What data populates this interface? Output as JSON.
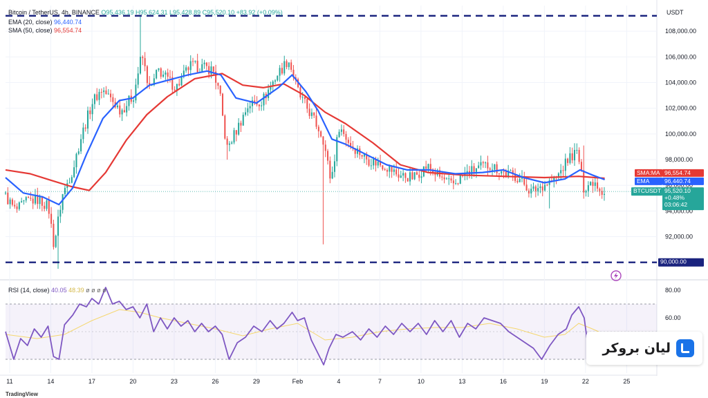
{
  "header": {
    "symbol": "Bitcoin / TetherUS, 4h, BINANCE",
    "o": "O95,436.19",
    "h": "H95,624.31",
    "l": "L95,428.89",
    "c": "C95,520.10",
    "change": "+83.92 (+0.09%)",
    "ema_label": "EMA (20, close)",
    "ema_value": "96,440.74",
    "sma_label": "SMA (50, close)",
    "sma_value": "96,554.74",
    "rsi_label": "RSI (14, close)",
    "rsi_value": "40.05",
    "rsi_ma_value": "48.39",
    "rsi_extra": "ø ø ø ø"
  },
  "price_axis": {
    "currency": "USDT",
    "sma_tag": "SMA:MA",
    "sma_tag_value": "96,554.74",
    "ema_tag": "EMA",
    "ema_tag_value": "96,440.74",
    "symbol_tag": "BTCUSDT",
    "last_price": "95,520.10",
    "last_change": "+0.48%",
    "countdown": "03:06:42",
    "level_tag": "90,000.00"
  },
  "branding": {
    "name": "لیان بروکر",
    "footer": "TradingView"
  },
  "colors": {
    "bull": "#26a69a",
    "bear": "#ef5350",
    "ema": "#2962ff",
    "sma": "#e53935",
    "rsi": "#7e57c2",
    "rsi_ma": "#f5d76e",
    "level": "#1a237e"
  },
  "chart_data": {
    "type": "candlestick",
    "title": "Bitcoin / TetherUS, 4h, BINANCE",
    "y_axis": {
      "unit": "USDT",
      "range": [
        88800,
        110000
      ],
      "tick_values": [
        92000,
        94000,
        96000,
        98000,
        100000,
        102000,
        104000,
        106000,
        108000
      ],
      "tick_labels": [
        "92,000.00",
        "94,000.00",
        "96,000.00",
        "98,000.00",
        "100,000.00",
        "102,000.00",
        "104,000.00",
        "106,000.00",
        "108,000.00"
      ]
    },
    "x_axis": {
      "labels": [
        "11",
        "14",
        "17",
        "20",
        "23",
        "26",
        "29",
        "Feb",
        "4",
        "7",
        "10",
        "13",
        "16",
        "19",
        "22",
        "25"
      ],
      "label_day_index": [
        0,
        3,
        6,
        9,
        12,
        15,
        18,
        21,
        24,
        27,
        30,
        33,
        36,
        39,
        42,
        45
      ],
      "visible_day_range": [
        -0.3,
        47.2
      ],
      "data_day_range": [
        -0.3,
        43.4
      ]
    },
    "horizontal_levels": [
      109200,
      90000
    ],
    "price_path": [
      [
        -0.3,
        95400
      ],
      [
        0.6,
        94000
      ],
      [
        1.5,
        94800
      ],
      [
        2.3,
        94900
      ],
      [
        3.0,
        94300
      ],
      [
        3.4,
        91300
      ],
      [
        4.0,
        95200
      ],
      [
        4.8,
        97300
      ],
      [
        5.3,
        99500
      ],
      [
        6.2,
        102500
      ],
      [
        6.9,
        103500
      ],
      [
        8.3,
        101800
      ],
      [
        9.2,
        103000
      ],
      [
        9.8,
        106200
      ],
      [
        10.4,
        103300
      ],
      [
        11.0,
        105000
      ],
      [
        12.3,
        103600
      ],
      [
        13.3,
        105300
      ],
      [
        14.2,
        105200
      ],
      [
        15.0,
        105000
      ],
      [
        15.5,
        103000
      ],
      [
        16.0,
        98800
      ],
      [
        16.8,
        100500
      ],
      [
        17.6,
        102300
      ],
      [
        18.6,
        102600
      ],
      [
        19.6,
        104500
      ],
      [
        20.5,
        105800
      ],
      [
        21.3,
        103000
      ],
      [
        22.2,
        101400
      ],
      [
        23.0,
        99800
      ],
      [
        23.6,
        96300
      ],
      [
        24.2,
        100600
      ],
      [
        25.0,
        99200
      ],
      [
        26.3,
        98000
      ],
      [
        27.6,
        97500
      ],
      [
        28.5,
        96800
      ],
      [
        29.6,
        96600
      ],
      [
        30.6,
        97500
      ],
      [
        31.6,
        96600
      ],
      [
        32.4,
        96000
      ],
      [
        33.2,
        96700
      ],
      [
        34.2,
        97300
      ],
      [
        35.2,
        97600
      ],
      [
        36.2,
        97000
      ],
      [
        37.3,
        96600
      ],
      [
        38.2,
        95500
      ],
      [
        39.0,
        96000
      ],
      [
        40.0,
        96500
      ],
      [
        41.0,
        98200
      ],
      [
        41.6,
        98600
      ],
      [
        42.0,
        95800
      ],
      [
        42.8,
        96400
      ],
      [
        43.4,
        95520
      ]
    ],
    "spikes": [
      [
        3.5,
        89500
      ],
      [
        9.6,
        109200
      ],
      [
        22.8,
        91400
      ],
      [
        39.3,
        94200
      ],
      [
        41.8,
        99100
      ],
      [
        15.8,
        98000
      ]
    ],
    "ema20_path": [
      [
        -0.3,
        96600
      ],
      [
        1.0,
        95400
      ],
      [
        2.4,
        95100
      ],
      [
        3.6,
        94500
      ],
      [
        4.6,
        95800
      ],
      [
        5.6,
        98400
      ],
      [
        6.8,
        101200
      ],
      [
        8.0,
        102600
      ],
      [
        9.0,
        102800
      ],
      [
        10.2,
        103800
      ],
      [
        11.6,
        104200
      ],
      [
        13.0,
        104600
      ],
      [
        14.4,
        104900
      ],
      [
        15.4,
        104600
      ],
      [
        16.5,
        102800
      ],
      [
        18.0,
        102400
      ],
      [
        19.6,
        103600
      ],
      [
        20.6,
        104600
      ],
      [
        21.6,
        103300
      ],
      [
        22.5,
        101800
      ],
      [
        23.5,
        99600
      ],
      [
        24.5,
        99200
      ],
      [
        26.0,
        98400
      ],
      [
        27.5,
        97600
      ],
      [
        29.0,
        97200
      ],
      [
        30.6,
        97200
      ],
      [
        32.5,
        96900
      ],
      [
        34.5,
        97000
      ],
      [
        36.0,
        97200
      ],
      [
        37.5,
        96600
      ],
      [
        39.0,
        96200
      ],
      [
        40.5,
        96500
      ],
      [
        41.6,
        97200
      ],
      [
        42.5,
        96800
      ],
      [
        43.4,
        96440
      ]
    ],
    "sma50_path": [
      [
        -0.3,
        97200
      ],
      [
        1.5,
        96900
      ],
      [
        3.0,
        96400
      ],
      [
        4.5,
        95900
      ],
      [
        5.8,
        95600
      ],
      [
        7.0,
        97000
      ],
      [
        8.5,
        99500
      ],
      [
        10.0,
        101500
      ],
      [
        11.5,
        102900
      ],
      [
        13.5,
        104300
      ],
      [
        15.5,
        104700
      ],
      [
        17.0,
        103800
      ],
      [
        18.5,
        103600
      ],
      [
        20.0,
        103900
      ],
      [
        21.5,
        103000
      ],
      [
        23.0,
        101700
      ],
      [
        24.5,
        100800
      ],
      [
        26.5,
        99300
      ],
      [
        28.5,
        97600
      ],
      [
        30.5,
        97000
      ],
      [
        33.0,
        96800
      ],
      [
        36.0,
        96700
      ],
      [
        39.0,
        96600
      ],
      [
        41.5,
        96700
      ],
      [
        43.4,
        96550
      ]
    ],
    "rsi": {
      "range": [
        20,
        85
      ],
      "bands": [
        30,
        70
      ],
      "tick_values": [
        60,
        80
      ],
      "tick_labels": [
        "60.00",
        "80.00"
      ],
      "path": [
        [
          -0.3,
          50
        ],
        [
          0.3,
          30
        ],
        [
          0.8,
          45
        ],
        [
          1.3,
          40
        ],
        [
          1.8,
          52
        ],
        [
          2.3,
          46
        ],
        [
          2.8,
          54
        ],
        [
          3.2,
          32
        ],
        [
          3.6,
          30
        ],
        [
          4.0,
          55
        ],
        [
          4.6,
          62
        ],
        [
          5.1,
          70
        ],
        [
          5.6,
          68
        ],
        [
          6.0,
          74
        ],
        [
          6.5,
          70
        ],
        [
          7.0,
          82
        ],
        [
          7.5,
          70
        ],
        [
          8.0,
          72
        ],
        [
          8.5,
          66
        ],
        [
          9.0,
          68
        ],
        [
          9.5,
          60
        ],
        [
          10.0,
          70
        ],
        [
          10.5,
          50
        ],
        [
          11.0,
          60
        ],
        [
          11.5,
          52
        ],
        [
          12.0,
          60
        ],
        [
          12.5,
          54
        ],
        [
          13.0,
          58
        ],
        [
          13.5,
          50
        ],
        [
          14.0,
          56
        ],
        [
          14.5,
          50
        ],
        [
          15.0,
          54
        ],
        [
          15.5,
          48
        ],
        [
          16.0,
          30
        ],
        [
          16.6,
          42
        ],
        [
          17.2,
          46
        ],
        [
          17.8,
          54
        ],
        [
          18.4,
          50
        ],
        [
          19.0,
          58
        ],
        [
          19.5,
          52
        ],
        [
          20.0,
          56
        ],
        [
          20.6,
          64
        ],
        [
          21.0,
          58
        ],
        [
          21.5,
          60
        ],
        [
          22.0,
          44
        ],
        [
          22.5,
          34
        ],
        [
          22.9,
          26
        ],
        [
          23.3,
          38
        ],
        [
          23.8,
          48
        ],
        [
          24.3,
          46
        ],
        [
          25.0,
          50
        ],
        [
          25.6,
          44
        ],
        [
          26.2,
          52
        ],
        [
          26.8,
          46
        ],
        [
          27.4,
          54
        ],
        [
          28.0,
          48
        ],
        [
          28.6,
          56
        ],
        [
          29.2,
          50
        ],
        [
          29.8,
          56
        ],
        [
          30.4,
          48
        ],
        [
          31.0,
          58
        ],
        [
          31.6,
          50
        ],
        [
          32.2,
          58
        ],
        [
          32.8,
          46
        ],
        [
          33.4,
          56
        ],
        [
          34.0,
          52
        ],
        [
          34.6,
          60
        ],
        [
          35.2,
          58
        ],
        [
          35.8,
          56
        ],
        [
          36.4,
          50
        ],
        [
          37.0,
          46
        ],
        [
          37.6,
          42
        ],
        [
          38.2,
          38
        ],
        [
          38.8,
          30
        ],
        [
          39.4,
          40
        ],
        [
          40.0,
          48
        ],
        [
          40.6,
          52
        ],
        [
          41.0,
          62
        ],
        [
          41.5,
          68
        ],
        [
          41.9,
          60
        ],
        [
          42.2,
          38
        ],
        [
          42.8,
          42
        ],
        [
          43.4,
          40
        ]
      ],
      "ma_path": [
        [
          -0.3,
          48
        ],
        [
          2.0,
          45
        ],
        [
          4.0,
          48
        ],
        [
          6.0,
          58
        ],
        [
          8.0,
          66
        ],
        [
          9.5,
          64
        ],
        [
          11.0,
          60
        ],
        [
          13.0,
          56
        ],
        [
          15.0,
          52
        ],
        [
          17.0,
          47
        ],
        [
          19.0,
          52
        ],
        [
          21.0,
          56
        ],
        [
          23.0,
          44
        ],
        [
          25.0,
          46
        ],
        [
          27.0,
          50
        ],
        [
          29.0,
          52
        ],
        [
          31.0,
          53
        ],
        [
          33.0,
          53
        ],
        [
          35.0,
          56
        ],
        [
          37.0,
          52
        ],
        [
          39.0,
          46
        ],
        [
          40.5,
          48
        ],
        [
          41.5,
          56
        ],
        [
          42.5,
          52
        ],
        [
          43.4,
          48
        ]
      ]
    }
  }
}
